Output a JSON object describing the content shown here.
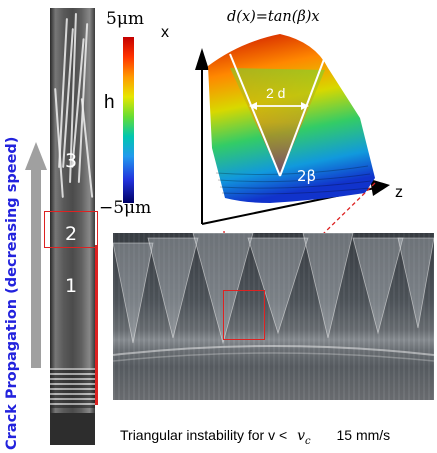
{
  "side_label": "Crack Propagation (decreasing speed)",
  "strip_zones": [
    "3",
    "2",
    "1"
  ],
  "colorbar": {
    "top_label": "5μm",
    "bottom_label": "−5μm",
    "quantity": "h"
  },
  "surface_plot": {
    "equation": "d(x)=tan(β)x",
    "width_label": "2 d",
    "angle_label": "2β",
    "axis_x": "x",
    "axis_z": "z"
  },
  "caption": {
    "text": "Triangular instability for v <",
    "symbol": "v",
    "symbol_sub": "c",
    "speed": "15 mm/s"
  },
  "colors": {
    "title_blue": "#2222dd",
    "highlight_red": "#dd2222",
    "arrow_gray": "#a0a0a0"
  }
}
